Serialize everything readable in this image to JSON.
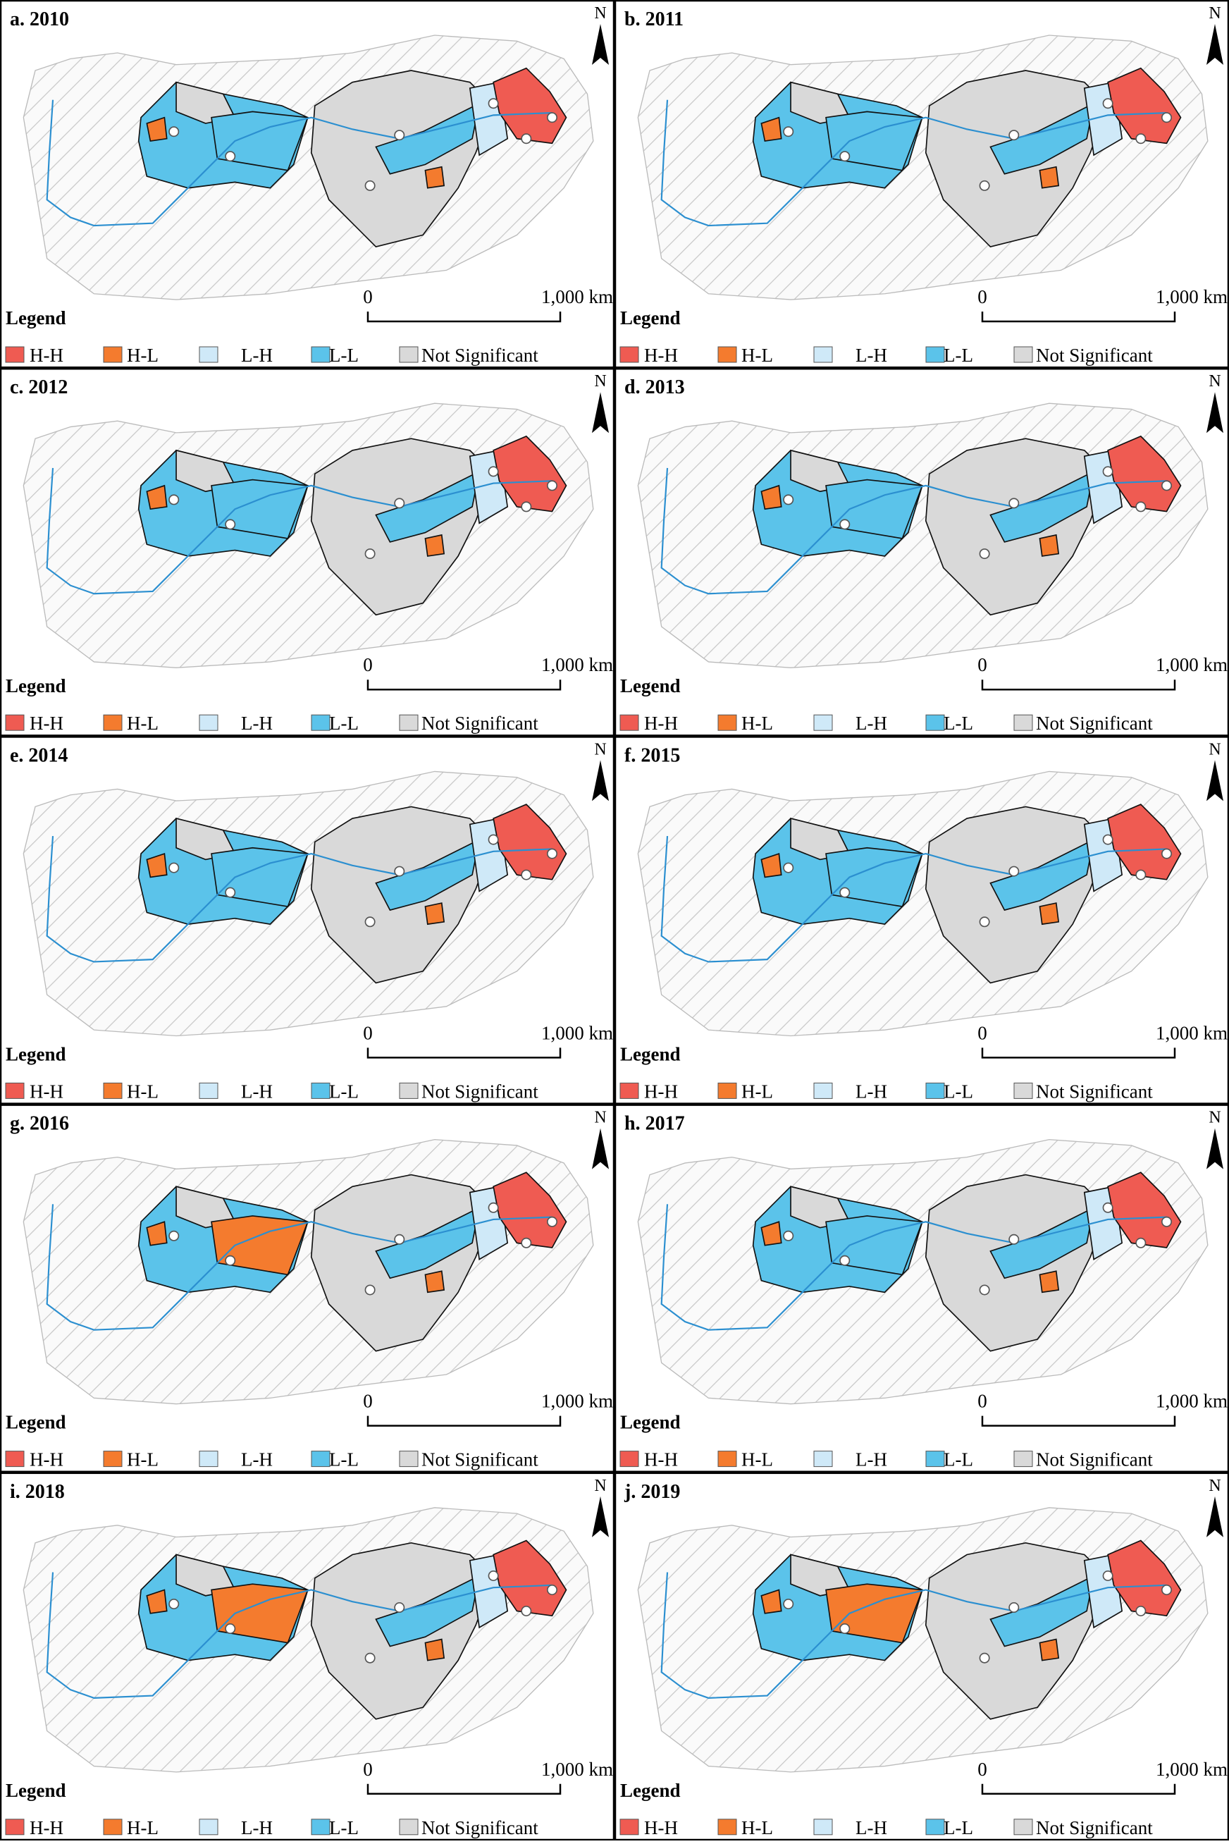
{
  "panels": [
    {
      "title": "a. 2010"
    },
    {
      "title": "b. 2011"
    },
    {
      "title": "c. 2012"
    },
    {
      "title": "d. 2013"
    },
    {
      "title": "e. 2014"
    },
    {
      "title": "f. 2015"
    },
    {
      "title": "g. 2016"
    },
    {
      "title": "h. 2017"
    },
    {
      "title": "i. 2018"
    },
    {
      "title": "j. 2019"
    }
  ],
  "north": "N",
  "scale_bar": {
    "start": "0",
    "end": "1,000 km"
  },
  "legend": {
    "title": "Legend",
    "items": [
      "H-H",
      "H-L",
      "L-H",
      "L-L",
      "Not Significant"
    ]
  }
}
